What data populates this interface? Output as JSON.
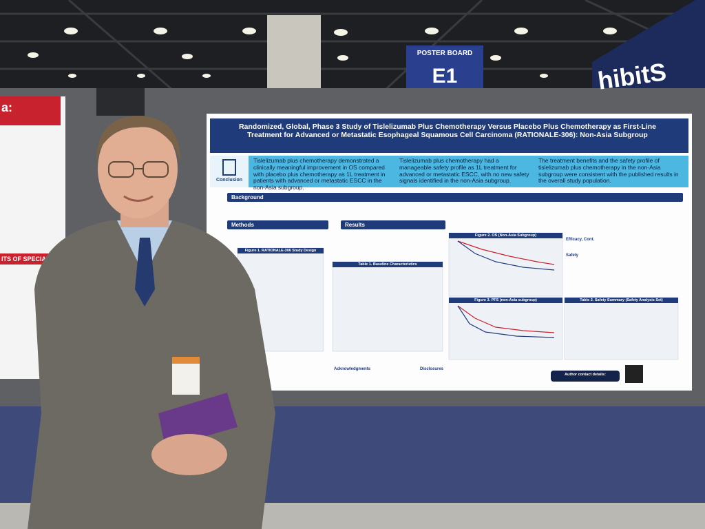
{
  "signage": {
    "poster_board_label": "POSTER BOARD",
    "poster_board_number": "E1",
    "banner": "hibitS"
  },
  "left_poster": {
    "header": "a:",
    "subheader": "ITS OF SPECIA"
  },
  "poster": {
    "title": "Randomized, Global, Phase 3 Study of Tislelizumab Plus Chemotherapy Versus Placebo Plus Chemotherapy as First-Line Treatment for Advanced or Metastatic Esophageal Squamous Cell Carcinoma (RATIONALE-306): Non-Asia Subgroup",
    "conclusion_label": "Conclusion",
    "conclusions": [
      "Tislelizumab plus chemotherapy demonstrated a clinically meaningful improvement in OS compared with placebo plus chemotherapy as 1L treatment in patients with advanced or metastatic ESCC in the non-Asia subgroup.",
      "Tislelizumab plus chemotherapy had a manageable safety profile as 1L treatment for advanced or metastatic ESCC, with no new safety signals identified in the non-Asia subgroup.",
      "The treatment benefits and the safety profile of tislelizumab plus chemotherapy in the non-Asia subgroup were consistent with the published results in the overall study population."
    ],
    "sections": {
      "background": "Background",
      "methods": "Methods",
      "results": "Results",
      "efficacy": "Efficacy, Cont.",
      "safety": "Safety",
      "acknowledgments": "Acknowledgments",
      "disclosures": "Disclosures"
    },
    "figures": {
      "fig1": "Figure 1. RATIONALE-306 Study Design",
      "table1": "Table 1. Baseline Characteristics",
      "fig2": "Figure 2. OS (Non-Asia Subgroup)",
      "fig3": "Figure 3. PFS (non-Asia subgroup)",
      "table2": "Table 2. Safety Summary (Safety Analysis Set)"
    },
    "contact": "Author contact details:"
  }
}
